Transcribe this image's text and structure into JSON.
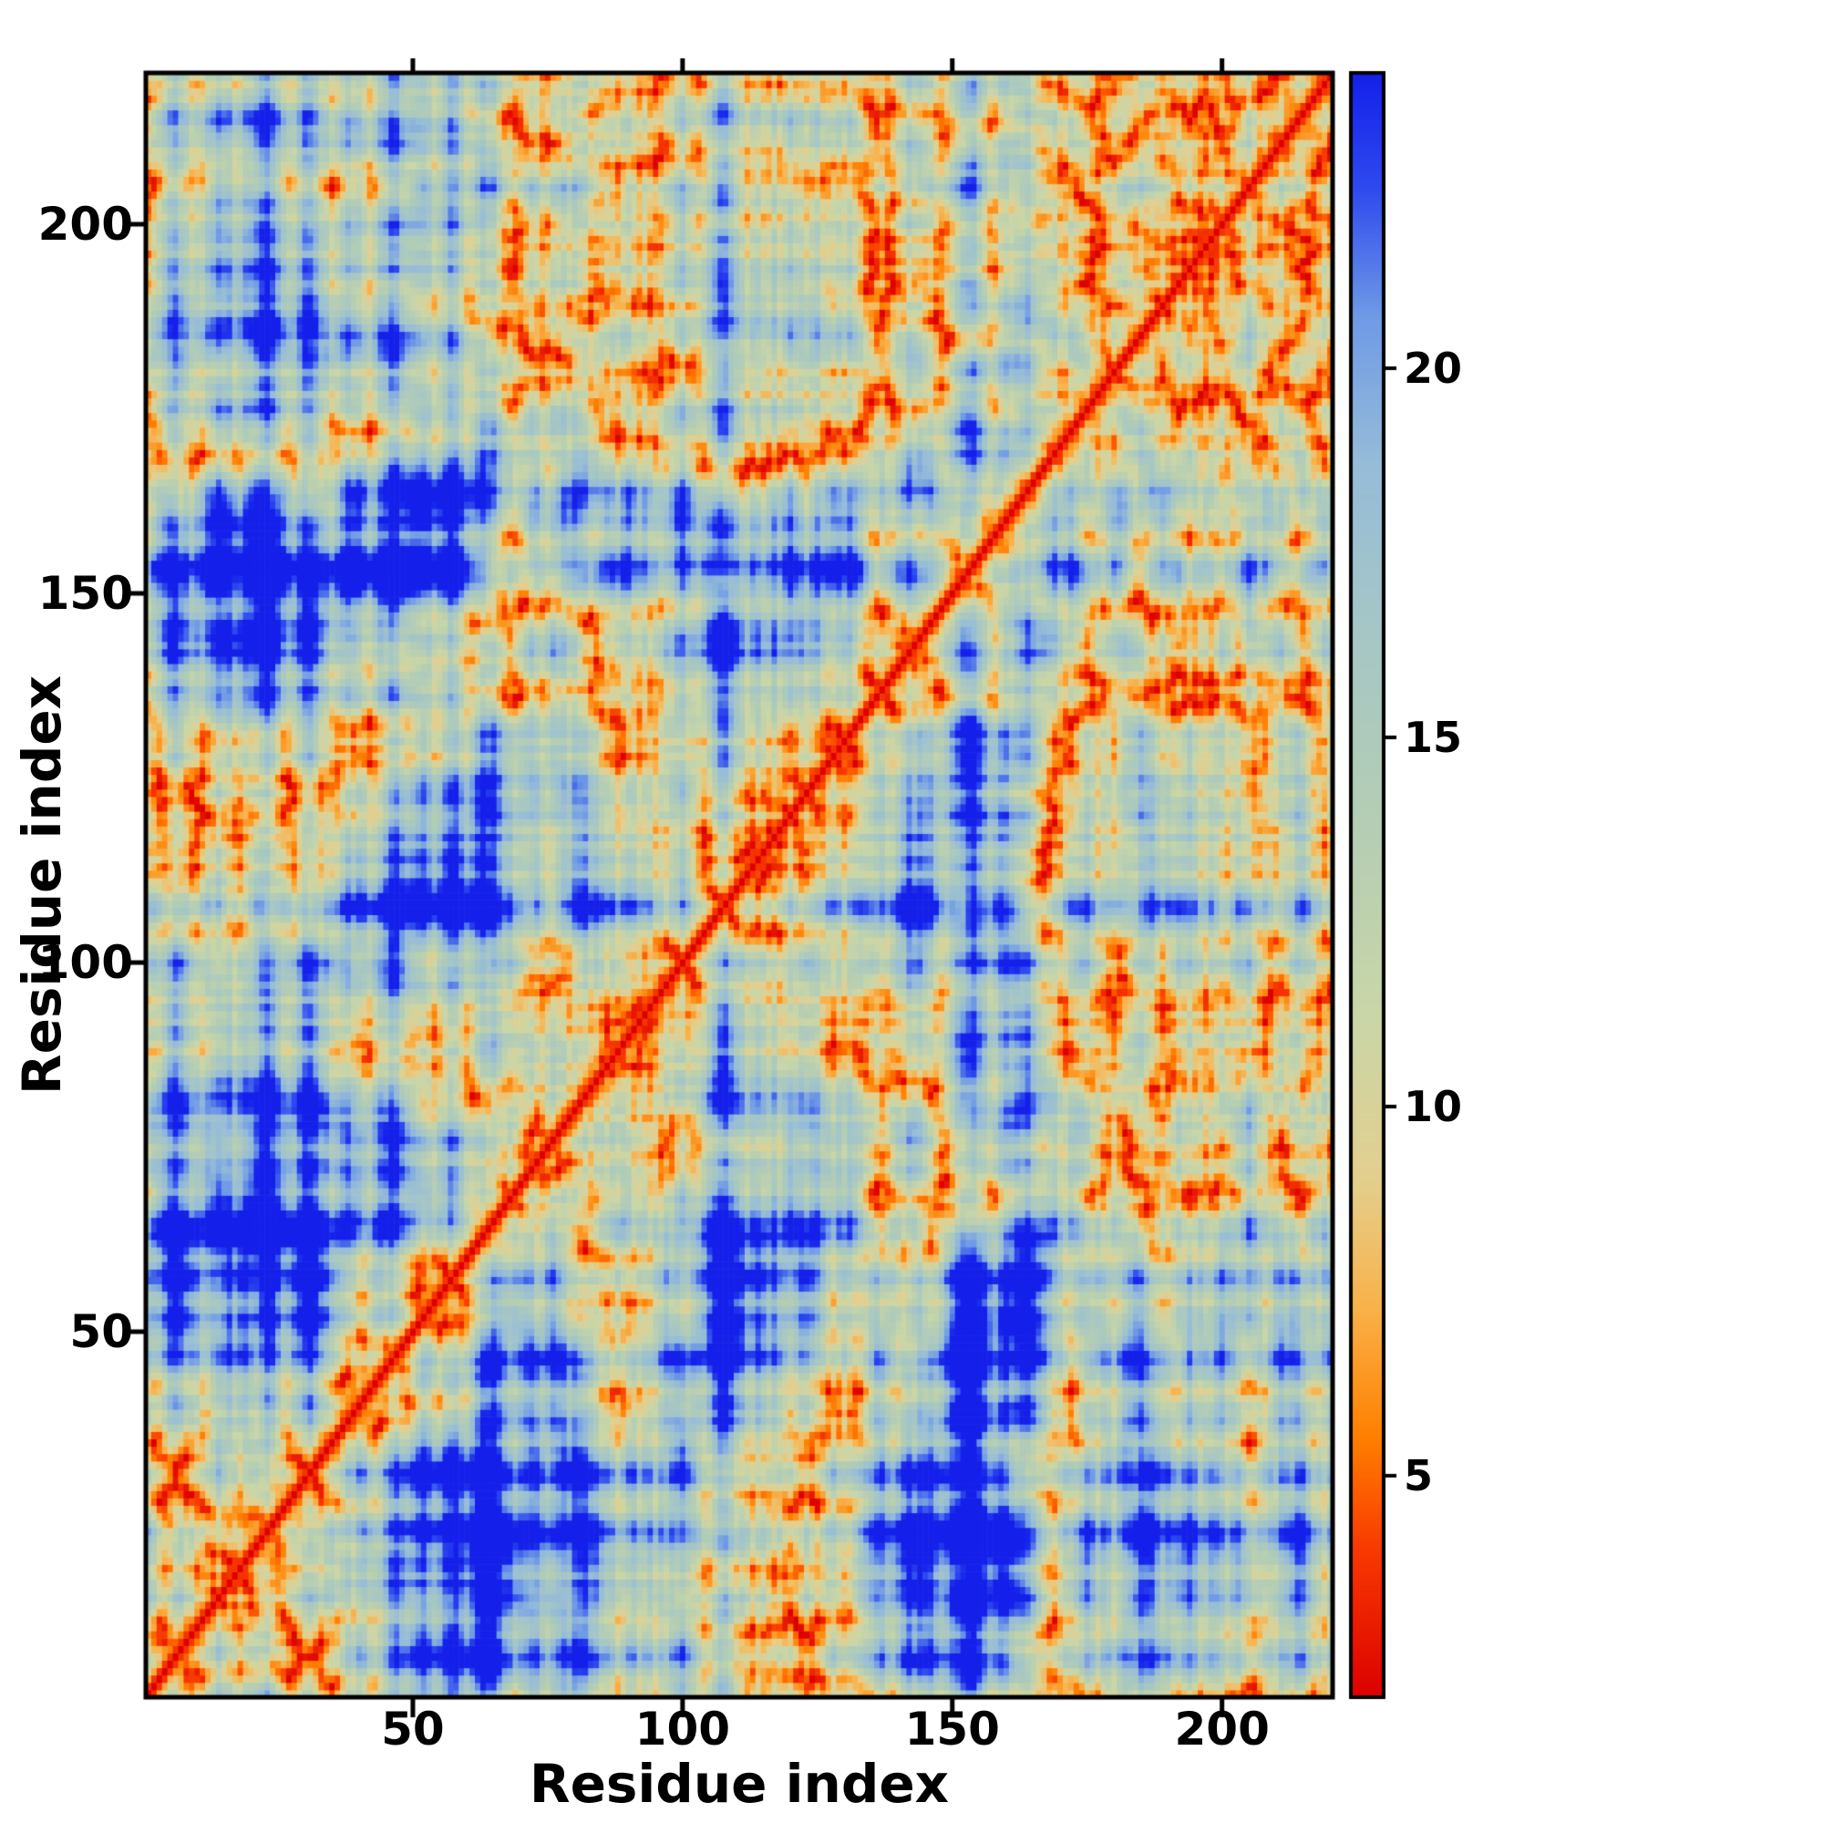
{
  "figure": {
    "background": "#ffffff",
    "frame_color": "#000000",
    "text_color": "#000000"
  },
  "chart_data": {
    "type": "heatmap",
    "title": "",
    "xlabel": "Residue index",
    "ylabel": "Residue index",
    "x_ticks": [
      50,
      100,
      150,
      200
    ],
    "y_ticks": [
      50,
      100,
      150,
      200
    ],
    "x_range": [
      1,
      220
    ],
    "y_range": [
      1,
      220
    ],
    "n_residues": 220,
    "grid": false,
    "value_description": "Symmetric pairwise residue-residue distance map (protein contact map). Red diagonal = zero/short distances, orange speckles = close contacts, pale green-grey patches = intermediate distances, saturated blue = far apart (clipped at colorbar max).",
    "colorbar": {
      "position": "right",
      "vmin": 2,
      "vmax": 24,
      "ticks": [
        5,
        10,
        15,
        20
      ]
    },
    "colormap_stops": [
      {
        "t": 0.0,
        "color": "#dc0000"
      },
      {
        "t": 0.09,
        "color": "#f83800"
      },
      {
        "t": 0.16,
        "color": "#ff7f00"
      },
      {
        "t": 0.24,
        "color": "#f9b24a"
      },
      {
        "t": 0.32,
        "color": "#e3cf8f"
      },
      {
        "t": 0.42,
        "color": "#c9d6a8"
      },
      {
        "t": 0.54,
        "color": "#b4cdb4"
      },
      {
        "t": 0.66,
        "color": "#a5c6c6"
      },
      {
        "t": 0.76,
        "color": "#96bcd8"
      },
      {
        "t": 0.85,
        "color": "#6f9ae6"
      },
      {
        "t": 0.93,
        "color": "#2e49ee"
      },
      {
        "t": 1.0,
        "color": "#1420ea"
      }
    ],
    "generator": {
      "seed": 11,
      "bond_length": 3.8,
      "confinement_radius": 26,
      "persistence": 0.5,
      "pull_strength": 2.5
    }
  }
}
